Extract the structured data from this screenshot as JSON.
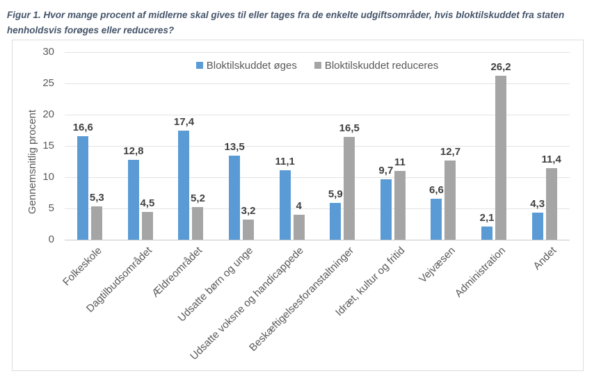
{
  "figure": {
    "title": "Figur 1. Hvor mange procent af midlerne skal gives til eller tages fra de enkelte udgiftsområder, hvis bloktilskuddet fra staten henholdsvis forøges eller reduceres?"
  },
  "colors": {
    "title_text": "#44546A",
    "axis_text": "#595959",
    "data_label_text": "#404040",
    "gridline": "#E2E2E2",
    "frame_border": "#DCDCDC",
    "series_increase": "#5B9BD5",
    "series_decrease": "#A5A5A5"
  },
  "chart_data": {
    "type": "bar",
    "title": "Figur 1. Hvor mange procent af midlerne skal gives til eller tages fra de enkelte udgiftsområder, hvis bloktilskuddet fra staten henholdsvis forøges eller reduceres?",
    "xlabel": "",
    "ylabel": "Gennemsnitlig procent",
    "ylim": [
      0,
      30
    ],
    "yticks": [
      0,
      5,
      10,
      15,
      20,
      25,
      30
    ],
    "grid": true,
    "legend_position": "top-center",
    "decimal_separator": ",",
    "categories": [
      "Folkeskole",
      "Dagtilbudsområdet",
      "Ældreområdet",
      "Udsatte børn og unge",
      "Udsatte voksne og handicappede",
      "Beskæftigelsesforanstaltninger",
      "Idræt, kultur og fritid",
      "Vejvæsen",
      "Administration",
      "Andet"
    ],
    "series": [
      {
        "name": "Bloktilskuddet øges",
        "color": "#5B9BD5",
        "values": [
          16.6,
          12.8,
          17.4,
          13.5,
          11.1,
          5.9,
          9.7,
          6.6,
          2.1,
          4.3
        ],
        "labels": [
          "16,6",
          "12,8",
          "17,4",
          "13,5",
          "11,1",
          "5,9",
          "9,7",
          "6,6",
          "2,1",
          "4,3"
        ]
      },
      {
        "name": "Bloktilskuddet reduceres",
        "color": "#A5A5A5",
        "values": [
          5.3,
          4.5,
          5.2,
          3.2,
          4,
          16.5,
          11,
          12.7,
          26.2,
          11.4
        ],
        "labels": [
          "5,3",
          "4,5",
          "5,2",
          "3,2",
          "4",
          "16,5",
          "11",
          "12,7",
          "26,2",
          "11,4"
        ]
      }
    ]
  }
}
